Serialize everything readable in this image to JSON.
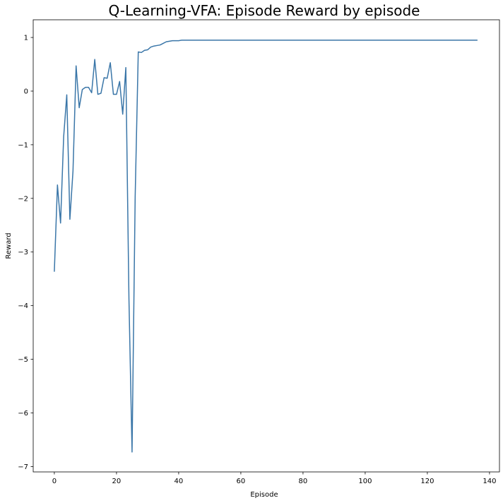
{
  "chart_data": {
    "type": "line",
    "title": "Q-Learning-VFA: Episode Reward by episode",
    "xlabel": "Episode",
    "ylabel": "Reward",
    "xlim": [
      -6.8,
      143.2
    ],
    "ylim": [
      -7.1,
      1.33
    ],
    "xticks": [
      0,
      20,
      40,
      60,
      80,
      100,
      120,
      140
    ],
    "yticks": [
      1,
      0,
      -1,
      -2,
      -3,
      -4,
      -5,
      -6,
      -7
    ],
    "ytick_labels": [
      "1",
      "0",
      "−1",
      "−2",
      "−3",
      "−4",
      "−5",
      "−6",
      "−7"
    ],
    "grid": false,
    "color": "#3a76a8",
    "series": [
      {
        "x": [
          0,
          1,
          2,
          3,
          4,
          5,
          6,
          7,
          8,
          9,
          10,
          11,
          12,
          13,
          14,
          15,
          16,
          17,
          18,
          19,
          20,
          21,
          22,
          23,
          24,
          25,
          26,
          27,
          28,
          29,
          30,
          31,
          32,
          33,
          34,
          35,
          36,
          37,
          38,
          39,
          40,
          41,
          42,
          50,
          60,
          70,
          80,
          90,
          100,
          110,
          120,
          130,
          136
        ],
        "y": [
          -3.36,
          -1.75,
          -2.46,
          -0.85,
          -0.07,
          -2.39,
          -1.49,
          0.47,
          -0.31,
          0.03,
          0.07,
          0.07,
          -0.03,
          0.59,
          -0.06,
          -0.04,
          0.25,
          0.24,
          0.53,
          -0.06,
          -0.06,
          0.18,
          -0.43,
          0.44,
          -3.87,
          -6.73,
          -1.98,
          0.73,
          0.72,
          0.76,
          0.77,
          0.82,
          0.84,
          0.85,
          0.86,
          0.89,
          0.92,
          0.93,
          0.94,
          0.94,
          0.94,
          0.95,
          0.95,
          0.95,
          0.95,
          0.95,
          0.95,
          0.95,
          0.95,
          0.95,
          0.95,
          0.95,
          0.95
        ]
      }
    ]
  }
}
